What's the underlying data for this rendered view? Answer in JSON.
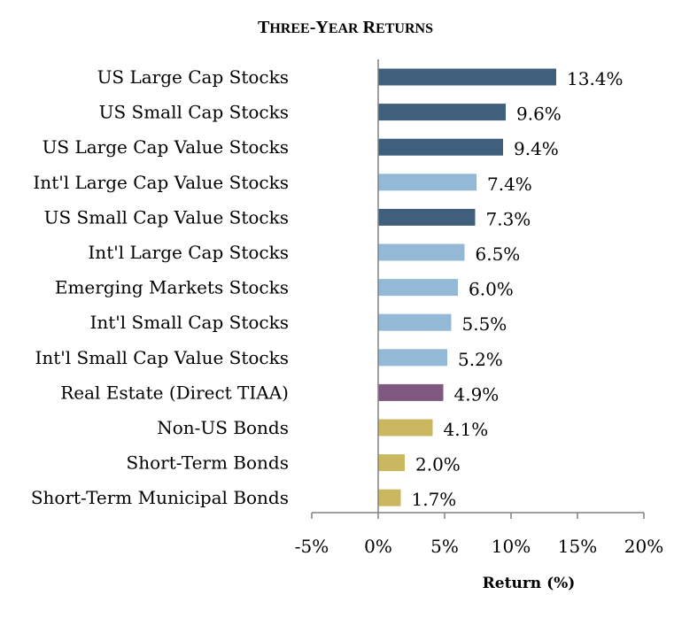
{
  "chart_data": {
    "type": "bar",
    "orientation": "horizontal",
    "title": "Three-Year Returns",
    "xlabel": "Return (%)",
    "ylabel": "",
    "xlim": [
      -5,
      20
    ],
    "xticks": [
      -5,
      0,
      5,
      10,
      15,
      20
    ],
    "xtick_labels": [
      "-5%",
      "0%",
      "5%",
      "10%",
      "15%",
      "20%"
    ],
    "grid": false,
    "categories": [
      "US Large Cap Stocks",
      "US Small Cap Stocks",
      "US Large Cap Value Stocks",
      "Int'l Large Cap Value Stocks",
      "US Small Cap Value Stocks",
      "Int'l Large Cap Stocks",
      "Emerging Markets Stocks",
      "Int'l Small Cap Stocks",
      "Int'l Small Cap Value Stocks",
      "Real Estate (Direct TIAA)",
      "Non-US Bonds",
      "Short-Term Bonds",
      "Short-Term Municipal Bonds"
    ],
    "values": [
      13.4,
      9.6,
      9.4,
      7.4,
      7.3,
      6.5,
      6.0,
      5.5,
      5.2,
      4.9,
      4.1,
      2.0,
      1.7
    ],
    "value_labels": [
      "13.4%",
      "9.6%",
      "9.4%",
      "7.4%",
      "7.3%",
      "6.5%",
      "6.0%",
      "5.5%",
      "5.2%",
      "4.9%",
      "4.1%",
      "2.0%",
      "1.7%"
    ],
    "colors": [
      "#3f5f7c",
      "#3f5f7c",
      "#3f5f7c",
      "#93b9d6",
      "#3f5f7c",
      "#93b9d6",
      "#93b9d6",
      "#93b9d6",
      "#93b9d6",
      "#7e587e",
      "#c9b860",
      "#c9b860",
      "#c9b860"
    ]
  }
}
